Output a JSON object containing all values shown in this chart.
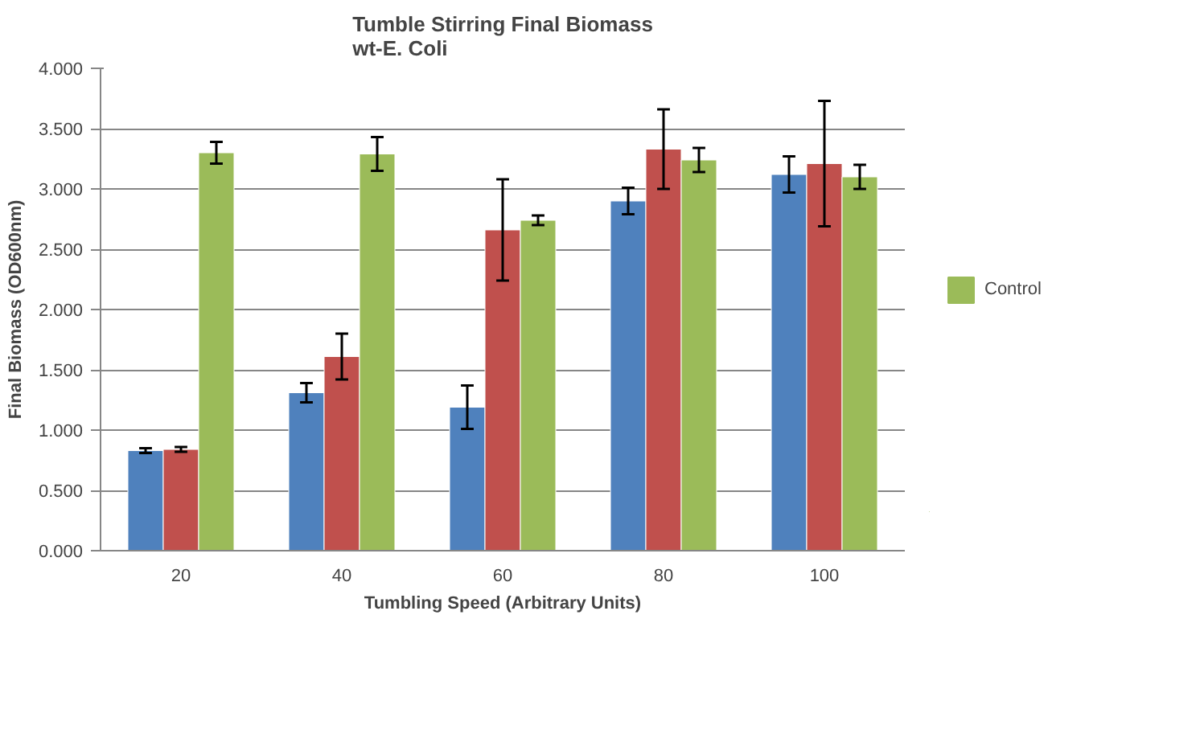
{
  "chart_data": {
    "type": "bar",
    "title": "Tumble Stirring Final Biomass\nwt-E. Coli",
    "xlabel": "Tumbling Speed (Arbitrary Units)",
    "ylabel": "Final Biomass (OD600nm)",
    "categories": [
      "20",
      "40",
      "60",
      "80",
      "100"
    ],
    "series": [
      {
        "color": "#4f81bd",
        "values": [
          0.83,
          1.31,
          1.19,
          2.9,
          3.12
        ],
        "errors": [
          0.02,
          0.08,
          0.18,
          0.11,
          0.15
        ]
      },
      {
        "color": "#c0504d",
        "values": [
          0.84,
          1.61,
          2.66,
          3.33,
          3.21
        ],
        "errors": [
          0.02,
          0.19,
          0.42,
          0.33,
          0.52
        ]
      },
      {
        "name": "Control",
        "color": "#9bbb59",
        "values": [
          3.3,
          3.29,
          2.74,
          3.24,
          3.1
        ],
        "errors": [
          0.09,
          0.14,
          0.04,
          0.1,
          0.1
        ]
      }
    ],
    "ylim": [
      0,
      4
    ],
    "yticks": [
      {
        "value": 0,
        "label": "0.000"
      },
      {
        "value": 0.5,
        "label": "0.500"
      },
      {
        "value": 1,
        "label": "1.000"
      },
      {
        "value": 1.5,
        "label": "1.500"
      },
      {
        "value": 2,
        "label": "2.000"
      },
      {
        "value": 2.5,
        "label": "2.500"
      },
      {
        "value": 3,
        "label": "3.000"
      },
      {
        "value": 3.5,
        "label": "3.500"
      },
      {
        "value": 4,
        "label": "4.000"
      }
    ],
    "grid": "y",
    "legend": "right"
  }
}
